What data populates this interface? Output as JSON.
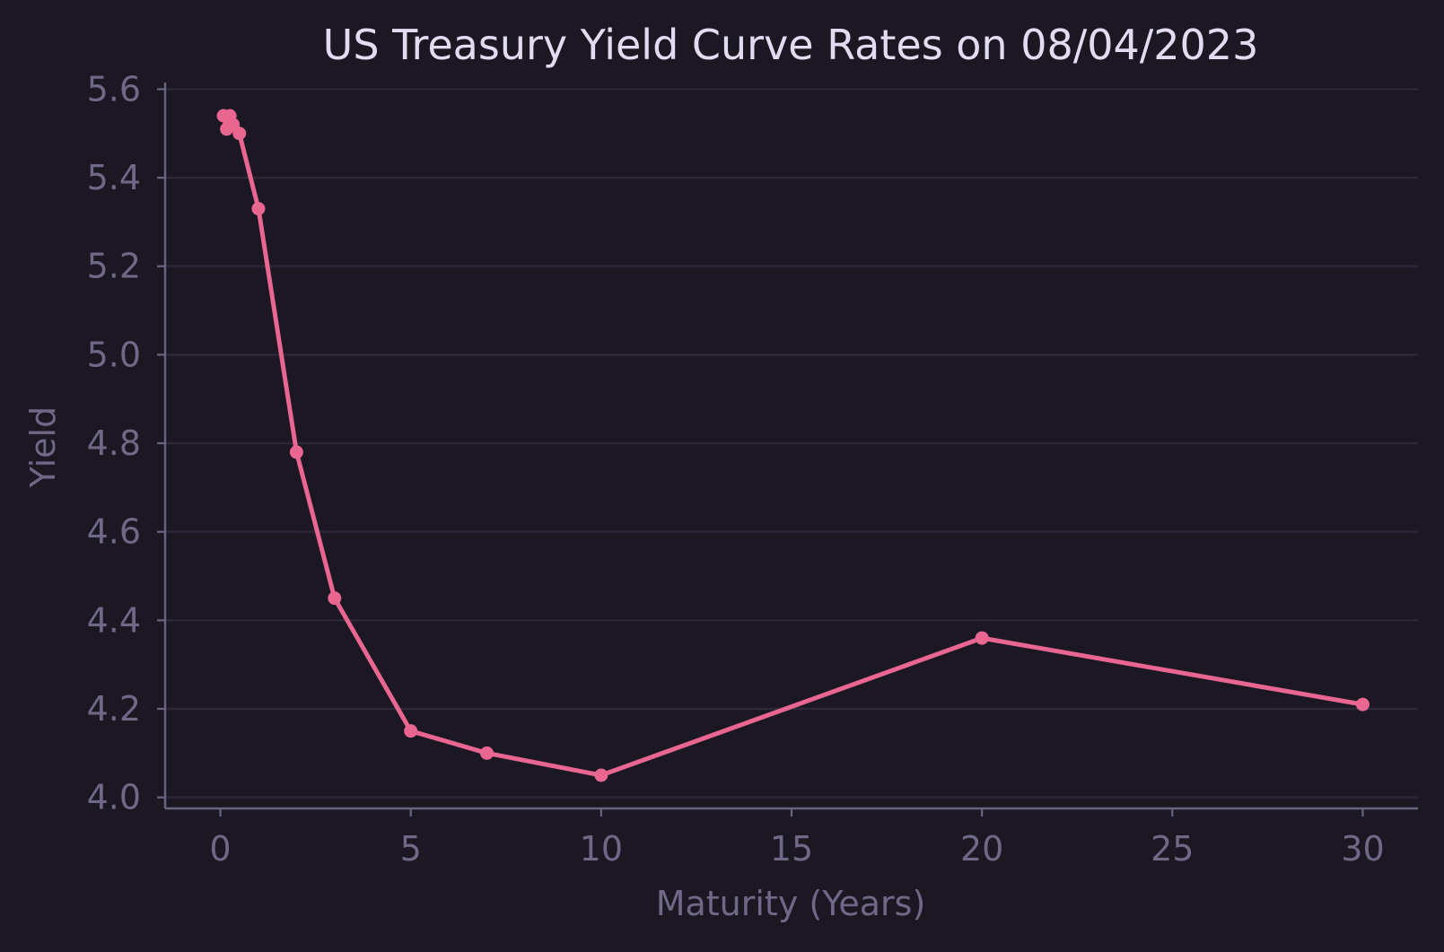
{
  "chart_data": {
    "type": "line",
    "title": "US Treasury Yield Curve Rates on 08/04/2023",
    "xlabel": "Maturity (Years)",
    "ylabel": "Yield",
    "xlim": [
      -1.45,
      31.45
    ],
    "ylim": [
      3.975,
      5.615
    ],
    "xticks": [
      0,
      5,
      10,
      15,
      20,
      25,
      30
    ],
    "yticks": [
      4.0,
      4.2,
      4.4,
      4.6,
      4.8,
      5.0,
      5.2,
      5.4,
      5.6
    ],
    "ytick_labels": [
      "4.0",
      "4.2",
      "4.4",
      "4.6",
      "4.8",
      "5.0",
      "5.2",
      "5.4",
      "5.6"
    ],
    "grid": "horizontal",
    "legend": "none",
    "series": [
      {
        "color": "#e8668f",
        "x": [
          0.083,
          0.167,
          0.25,
          0.333,
          0.5,
          1,
          2,
          3,
          5,
          7,
          10,
          20,
          30
        ],
        "y": [
          5.54,
          5.51,
          5.54,
          5.52,
          5.5,
          5.33,
          4.78,
          4.45,
          4.15,
          4.1,
          4.05,
          4.36,
          4.21
        ]
      }
    ]
  },
  "colors": {
    "background": "#1b1823",
    "series": "#e8668f",
    "title": "#e2dcf2",
    "muted_text": "#6f6887",
    "grid": "#2c2739"
  }
}
